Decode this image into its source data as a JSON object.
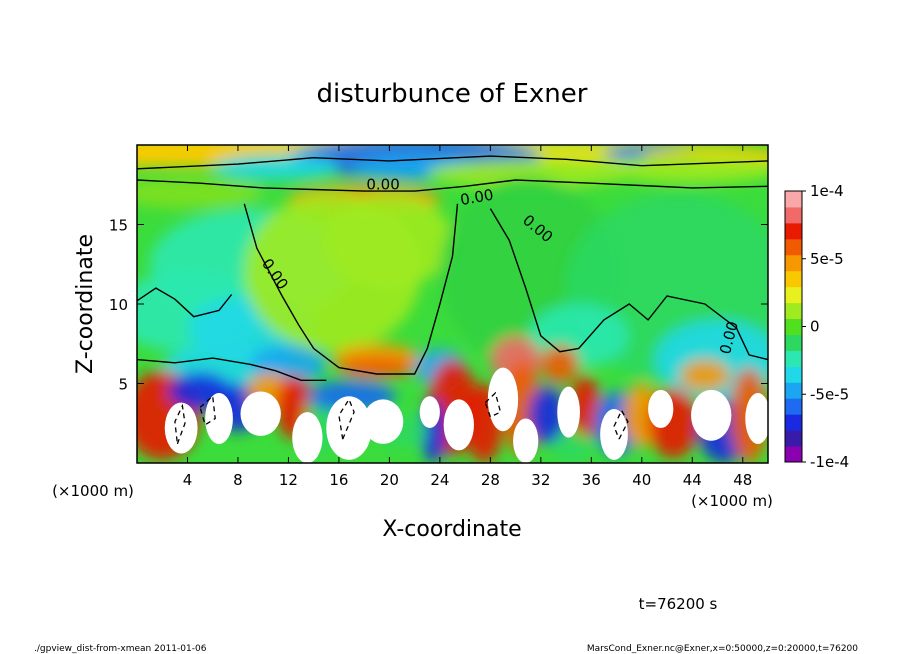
{
  "chart_data": {
    "type": "heatmap",
    "title": "disturbunce of Exner",
    "xlabel": "X-coordinate",
    "ylabel": "Z-coordinate",
    "x_unit": "(×1000 m)",
    "y_unit": "(×1000 m)",
    "xlim": [
      0,
      50
    ],
    "ylim": [
      0,
      20
    ],
    "x_ticks": [
      4,
      8,
      12,
      16,
      20,
      24,
      28,
      32,
      36,
      40,
      44,
      48
    ],
    "y_ticks": [
      5,
      10,
      15
    ],
    "colorbar": {
      "range": [
        -0.0001,
        0.0001
      ],
      "tick_labels": [
        "1e-4",
        "5e-5",
        "0",
        "-5e-5",
        "-1e-4"
      ],
      "tick_values": [
        0.0001,
        5e-05,
        0,
        -5e-05,
        -0.0001
      ],
      "colors": [
        "#8b00b0",
        "#3a1aa8",
        "#1a2ae0",
        "#1e6af0",
        "#1aa6f0",
        "#20d8e8",
        "#2ce8b0",
        "#2cd860",
        "#50e020",
        "#a0ea20",
        "#e8f020",
        "#f8c800",
        "#f89800",
        "#f05a00",
        "#e81a00",
        "#f06a6a",
        "#f8a8a8"
      ]
    },
    "contour_labels": [
      "0.00",
      "0.00",
      "0.00",
      "0.00",
      "0.00"
    ],
    "time_label": "t=76200 s",
    "footer_left": "./gpview_dist-from-xmean  2011-01-06",
    "footer_right": "MarsCond_Exner.nc@Exner,x=0:50000,z=0:20000,t=76200"
  }
}
